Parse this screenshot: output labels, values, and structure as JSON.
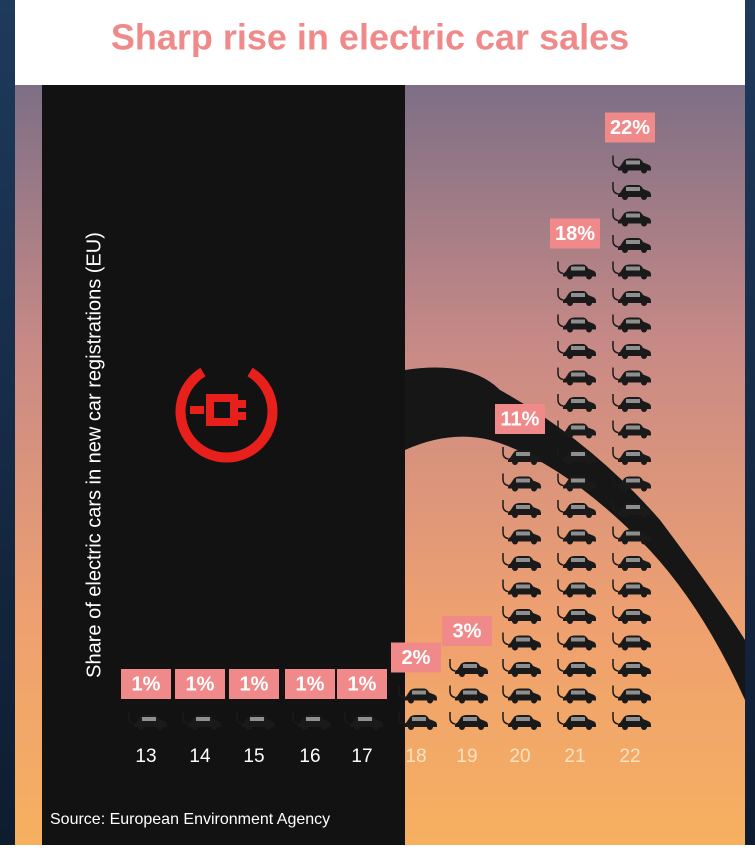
{
  "chart_data": {
    "type": "pictograph",
    "title": "Sharp rise in electric car sales",
    "y_label": "Share of electric cars in new car registrations (EU)",
    "source": "Source: European Environment Agency",
    "categories": [
      "13",
      "14",
      "15",
      "16",
      "17",
      "18",
      "19",
      "20",
      "21",
      "22"
    ],
    "values": [
      1,
      1,
      1,
      1,
      1,
      2,
      3,
      11,
      18,
      22
    ],
    "value_labels": [
      "1%",
      "1%",
      "1%",
      "1%",
      "1%",
      "2%",
      "3%",
      "11%",
      "18%",
      "22%"
    ],
    "color": "#1a1a1a",
    "label_color": "#f08a8a"
  }
}
